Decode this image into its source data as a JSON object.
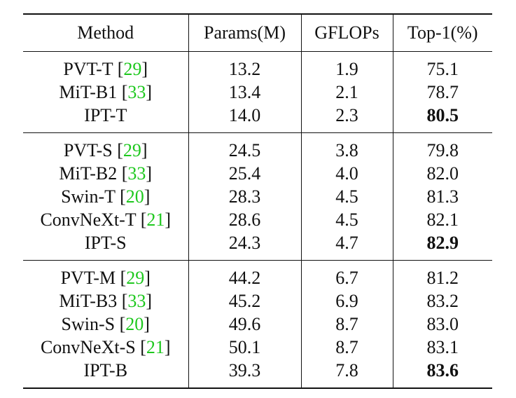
{
  "table": {
    "headers": [
      "Method",
      "Params(M)",
      "GFLOPs",
      "Top-1(%)"
    ],
    "groups": [
      {
        "rows": [
          {
            "method": "PVT-T",
            "ref": "29",
            "params": "13.2",
            "gflops": "1.9",
            "top1": "75.1",
            "best": false
          },
          {
            "method": "MiT-B1",
            "ref": "33",
            "params": "13.4",
            "gflops": "2.1",
            "top1": "78.7",
            "best": false
          },
          {
            "method": "IPT-T",
            "ref": "",
            "params": "14.0",
            "gflops": "2.3",
            "top1": "80.5",
            "best": true
          }
        ]
      },
      {
        "rows": [
          {
            "method": "PVT-S",
            "ref": "29",
            "params": "24.5",
            "gflops": "3.8",
            "top1": "79.8",
            "best": false
          },
          {
            "method": "MiT-B2",
            "ref": "33",
            "params": "25.4",
            "gflops": "4.0",
            "top1": "82.0",
            "best": false
          },
          {
            "method": "Swin-T",
            "ref": "20",
            "params": "28.3",
            "gflops": "4.5",
            "top1": "81.3",
            "best": false
          },
          {
            "method": "ConvNeXt-T",
            "ref": "21",
            "params": "28.6",
            "gflops": "4.5",
            "top1": "82.1",
            "best": false
          },
          {
            "method": "IPT-S",
            "ref": "",
            "params": "24.3",
            "gflops": "4.7",
            "top1": "82.9",
            "best": true
          }
        ]
      },
      {
        "rows": [
          {
            "method": "PVT-M",
            "ref": "29",
            "params": "44.2",
            "gflops": "6.7",
            "top1": "81.2",
            "best": false
          },
          {
            "method": "MiT-B3",
            "ref": "33",
            "params": "45.2",
            "gflops": "6.9",
            "top1": "83.2",
            "best": false
          },
          {
            "method": "Swin-S",
            "ref": "20",
            "params": "49.6",
            "gflops": "8.7",
            "top1": "83.0",
            "best": false
          },
          {
            "method": "ConvNeXt-S",
            "ref": "21",
            "params": "50.1",
            "gflops": "8.7",
            "top1": "83.1",
            "best": false
          },
          {
            "method": "IPT-B",
            "ref": "",
            "params": "39.3",
            "gflops": "7.8",
            "top1": "83.6",
            "best": true
          }
        ]
      }
    ],
    "colors": {
      "text": "#111111",
      "citation": "#1ec81e"
    }
  }
}
